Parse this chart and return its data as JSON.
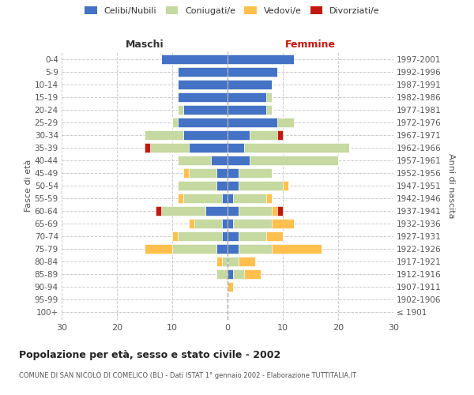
{
  "age_groups": [
    "100+",
    "95-99",
    "90-94",
    "85-89",
    "80-84",
    "75-79",
    "70-74",
    "65-69",
    "60-64",
    "55-59",
    "50-54",
    "45-49",
    "40-44",
    "35-39",
    "30-34",
    "25-29",
    "20-24",
    "15-19",
    "10-14",
    "5-9",
    "0-4"
  ],
  "birth_years": [
    "≤ 1901",
    "1902-1906",
    "1907-1911",
    "1912-1916",
    "1917-1921",
    "1922-1926",
    "1927-1931",
    "1932-1936",
    "1937-1941",
    "1942-1946",
    "1947-1951",
    "1952-1956",
    "1957-1961",
    "1962-1966",
    "1967-1971",
    "1972-1976",
    "1977-1981",
    "1982-1986",
    "1987-1991",
    "1992-1996",
    "1997-2001"
  ],
  "males_celibi": [
    0,
    0,
    0,
    0,
    0,
    2,
    1,
    1,
    4,
    1,
    2,
    2,
    3,
    7,
    8,
    9,
    8,
    9,
    9,
    9,
    12
  ],
  "males_coniugati": [
    0,
    0,
    0,
    2,
    1,
    8,
    8,
    5,
    8,
    7,
    7,
    5,
    6,
    7,
    7,
    1,
    1,
    0,
    0,
    0,
    0
  ],
  "males_vedovi": [
    0,
    0,
    0,
    0,
    1,
    5,
    1,
    1,
    0,
    1,
    0,
    1,
    0,
    0,
    0,
    0,
    0,
    0,
    0,
    0,
    0
  ],
  "males_divorziati": [
    0,
    0,
    0,
    0,
    0,
    0,
    0,
    0,
    1,
    0,
    0,
    0,
    0,
    1,
    0,
    0,
    0,
    0,
    0,
    0,
    0
  ],
  "females_nubili": [
    0,
    0,
    0,
    1,
    0,
    2,
    2,
    1,
    2,
    1,
    2,
    2,
    4,
    3,
    4,
    9,
    7,
    7,
    8,
    9,
    12
  ],
  "females_coniugate": [
    0,
    0,
    0,
    2,
    2,
    6,
    5,
    7,
    6,
    6,
    8,
    6,
    16,
    19,
    5,
    3,
    1,
    1,
    0,
    0,
    0
  ],
  "females_vedove": [
    0,
    0,
    1,
    3,
    3,
    9,
    3,
    4,
    1,
    1,
    1,
    0,
    0,
    0,
    0,
    0,
    0,
    0,
    0,
    0,
    0
  ],
  "females_divorziate": [
    0,
    0,
    0,
    0,
    0,
    0,
    0,
    0,
    1,
    0,
    0,
    0,
    0,
    0,
    1,
    0,
    0,
    0,
    0,
    0,
    0
  ],
  "color_celibi": "#4472c4",
  "color_coniugati": "#c5d9a0",
  "color_vedovi": "#ffc04d",
  "color_divorziati": "#c0190f",
  "xlim": 30,
  "title": "Popolazione per età, sesso e stato civile - 2002",
  "subtitle": "COMUNE DI SAN NICOLÒ DI COMELICO (BL) - Dati ISTAT 1° gennaio 2002 - Elaborazione TUTTITALIA.IT",
  "label_maschi": "Maschi",
  "label_femmine": "Femmine",
  "ylabel_left": "Fasce di età",
  "ylabel_right": "Anni di nascita",
  "legend_labels": [
    "Celibi/Nubili",
    "Coniugati/e",
    "Vedovi/e",
    "Divorziati/e"
  ],
  "bg_color": "#ffffff",
  "grid_color": "#cccccc"
}
